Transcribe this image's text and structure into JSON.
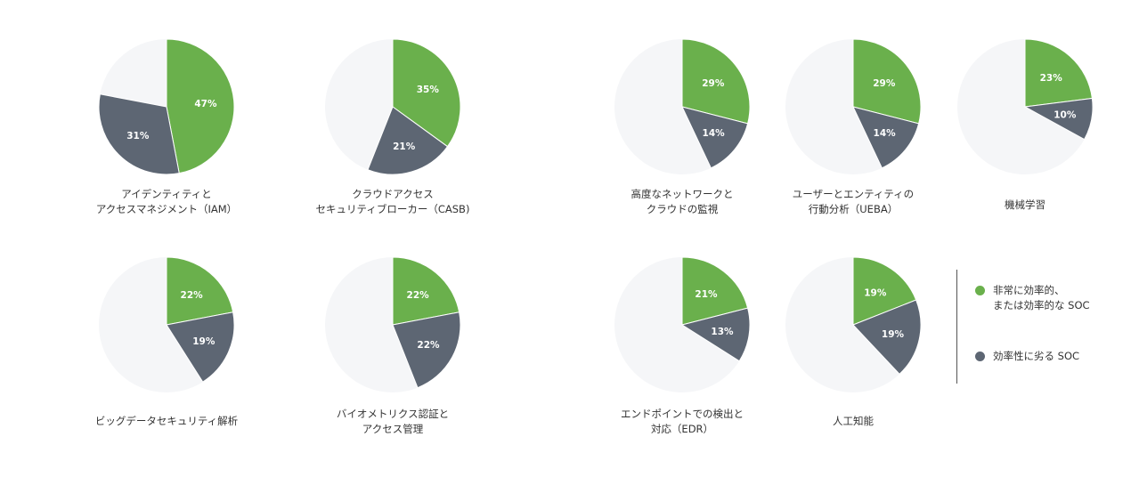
{
  "colors": {
    "efficient": "#6ab04c",
    "inefficient": "#5d6673",
    "remainder": "#f5f6f8"
  },
  "legend": {
    "efficient": "非常に効率的、\nまたは効率的な SOC",
    "inefficient": "効率性に劣る SOC"
  },
  "chart_data": {
    "type": "pie",
    "series_names": [
      "非常に効率的、または効率的な SOC",
      "効率性に劣る SOC"
    ],
    "charts": [
      {
        "label": "アイデンティティと\nアクセスマネジメント（IAM）",
        "efficient": 47,
        "inefficient": 31,
        "efficient_label": "47%",
        "inefficient_label": "31%"
      },
      {
        "label": "クラウドアクセス\nセキュリティブローカー（CASB)",
        "efficient": 35,
        "inefficient": 21,
        "efficient_label": "35%",
        "inefficient_label": "21%"
      },
      {
        "label": "高度なネットワークと\nクラウドの監視",
        "efficient": 29,
        "inefficient": 14,
        "efficient_label": "29%",
        "inefficient_label": "14%"
      },
      {
        "label": "ユーザーとエンティティの\n行動分析（UEBA）",
        "efficient": 29,
        "inefficient": 14,
        "efficient_label": "29%",
        "inefficient_label": "14%"
      },
      {
        "label": "機械学習",
        "efficient": 23,
        "inefficient": 10,
        "efficient_label": "23%",
        "inefficient_label": "10%"
      },
      {
        "label": "ビッグデータセキュリティ解析",
        "efficient": 22,
        "inefficient": 19,
        "efficient_label": "22%",
        "inefficient_label": "19%"
      },
      {
        "label": "バイオメトリクス認証と\nアクセス管理",
        "efficient": 22,
        "inefficient": 22,
        "efficient_label": "22%",
        "inefficient_label": "22%"
      },
      {
        "label": "エンドポイントでの検出と\n対応（EDR）",
        "efficient": 21,
        "inefficient": 13,
        "efficient_label": "21%",
        "inefficient_label": "13%"
      },
      {
        "label": "人工知能",
        "efficient": 19,
        "inefficient": 19,
        "efficient_label": "19%",
        "inefficient_label": "19%"
      }
    ]
  }
}
